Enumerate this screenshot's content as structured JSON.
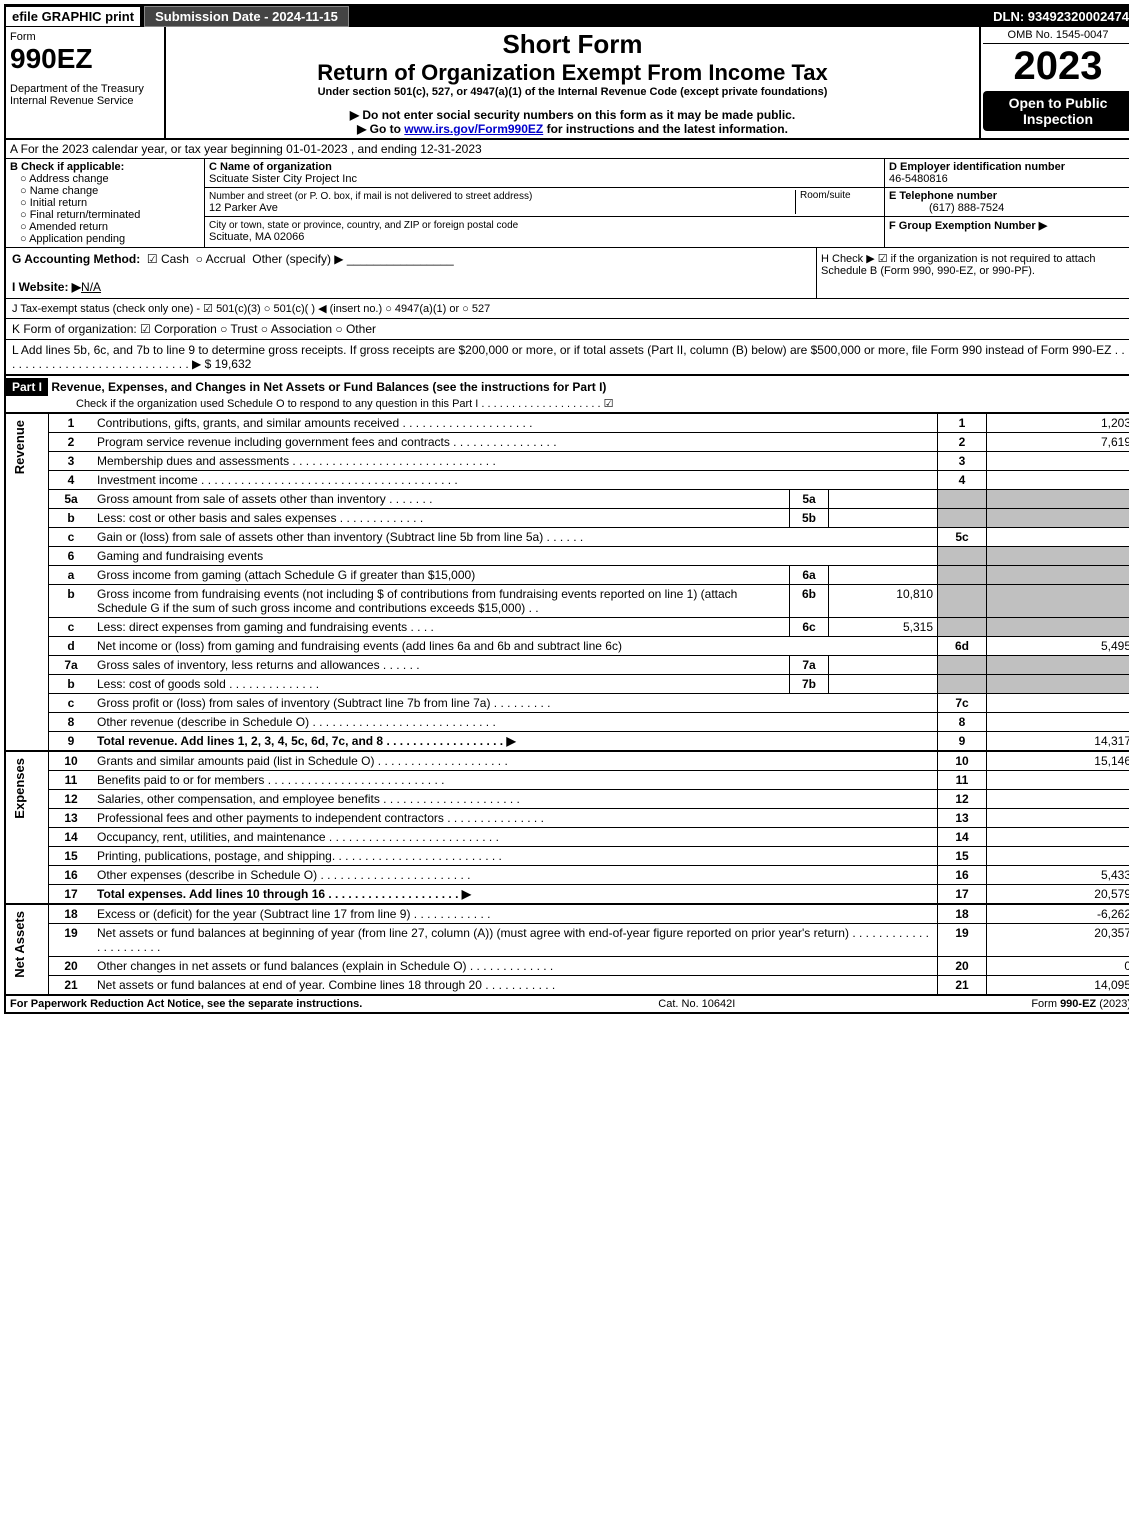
{
  "topbar": {
    "efile": "efile GRAPHIC print",
    "submission": "Submission Date - 2024-11-15",
    "dln": "DLN: 93492320002474"
  },
  "header": {
    "form_word": "Form",
    "form_num": "990EZ",
    "dept": "Department of the Treasury",
    "irs": "Internal Revenue Service",
    "short_form": "Short Form",
    "title": "Return of Organization Exempt From Income Tax",
    "under": "Under section 501(c), 527, or 4947(a)(1) of the Internal Revenue Code (except private foundations)",
    "noSSN": "▶ Do not enter social security numbers on this form as it may be made public.",
    "goto": "▶ Go to ",
    "goto_link": "www.irs.gov/Form990EZ",
    "goto_suffix": " for instructions and the latest information.",
    "omb": "OMB No. 1545-0047",
    "year": "2023",
    "open": "Open to Public Inspection"
  },
  "rowA": "A  For the 2023 calendar year, or tax year beginning 01-01-2023 , and ending 12-31-2023",
  "sectionB": {
    "label": "B  Check if applicable:",
    "items": [
      "Address change",
      "Name change",
      "Initial return",
      "Final return/terminated",
      "Amended return",
      "Application pending"
    ]
  },
  "sectionC": {
    "name_label": "C Name of organization",
    "name": "Scituate Sister City Project Inc",
    "street_label": "Number and street (or P. O. box, if mail is not delivered to street address)",
    "room_label": "Room/suite",
    "street": "12 Parker Ave",
    "city_label": "City or town, state or province, country, and ZIP or foreign postal code",
    "city": "Scituate, MA  02066"
  },
  "sectionD": {
    "d_label": "D Employer identification number",
    "ein": "46-5480816",
    "e_label": "E Telephone number",
    "phone": "(617) 888-7524",
    "f_label": "F Group Exemption Number  ▶"
  },
  "rowG": {
    "label": "G Accounting Method:",
    "cash": "Cash",
    "accrual": "Accrual",
    "other": "Other (specify) ▶"
  },
  "rowH": "H  Check ▶ ☑ if the organization is not required to attach Schedule B (Form 990, 990-EZ, or 990-PF).",
  "rowI": {
    "label": "I Website: ▶",
    "val": "N/A"
  },
  "rowJ": "J Tax-exempt status (check only one) - ☑ 501(c)(3)  ○ 501(c)(  ) ◀ (insert no.)  ○ 4947(a)(1) or  ○ 527",
  "rowK": "K Form of organization:  ☑ Corporation  ○ Trust  ○ Association  ○ Other",
  "rowL": {
    "text": "L Add lines 5b, 6c, and 7b to line 9 to determine gross receipts. If gross receipts are $200,000 or more, or if total assets (Part II, column (B) below) are $500,000 or more, file Form 990 instead of Form 990-EZ  .  .  .  .  .  .  .  .  .  .  .  .  .  .  .  .  .  .  .  .  .  .  .  .  .  .  .  .  .  ▶ $ ",
    "val": "19,632"
  },
  "part1": {
    "label": "Part I",
    "title": "Revenue, Expenses, and Changes in Net Assets or Fund Balances (see the instructions for Part I)",
    "check": "Check if the organization used Schedule O to respond to any question in this Part I  .  .  .  .  .  .  .  .  .  .  .  .  .  .  .  .  .  .  .  .  ☑"
  },
  "sections": {
    "revenue": "Revenue",
    "expenses": "Expenses",
    "netassets": "Net Assets"
  },
  "lines": [
    {
      "n": "1",
      "desc": "Contributions, gifts, grants, and similar amounts received  .  .  .  .  .  .  .  .  .  .  .  .  .  .  .  .  .  .  .  .",
      "rn": "1",
      "rv": "1,203"
    },
    {
      "n": "2",
      "desc": "Program service revenue including government fees and contracts  .  .  .  .  .  .  .  .  .  .  .  .  .  .  .  .",
      "rn": "2",
      "rv": "7,619"
    },
    {
      "n": "3",
      "desc": "Membership dues and assessments  .  .  .  .  .  .  .  .  .  .  .  .  .  .  .  .  .  .  .  .  .  .  .  .  .  .  .  .  .  .  .",
      "rn": "3",
      "rv": ""
    },
    {
      "n": "4",
      "desc": "Investment income  .  .  .  .  .  .  .  .  .  .  .  .  .  .  .  .  .  .  .  .  .  .  .  .  .  .  .  .  .  .  .  .  .  .  .  .  .  .  .",
      "rn": "4",
      "rv": ""
    },
    {
      "n": "5a",
      "desc": "Gross amount from sale of assets other than inventory  .  .  .  .  .  .  .",
      "sub_n": "5a",
      "sub_v": "",
      "shaded": true
    },
    {
      "n": "b",
      "desc": "Less: cost or other basis and sales expenses  .  .  .  .  .  .  .  .  .  .  .  .  .",
      "sub_n": "5b",
      "sub_v": "",
      "shaded": true
    },
    {
      "n": "c",
      "desc": "Gain or (loss) from sale of assets other than inventory (Subtract line 5b from line 5a)  .  .  .  .  .  .",
      "rn": "5c",
      "rv": ""
    },
    {
      "n": "6",
      "desc": "Gaming and fundraising events",
      "shaded": true
    },
    {
      "n": "a",
      "desc": "Gross income from gaming (attach Schedule G if greater than $15,000)",
      "sub_n": "6a",
      "sub_v": "",
      "shaded": true
    },
    {
      "n": "b",
      "desc": "Gross income from fundraising events (not including $                  of contributions from fundraising events reported on line 1) (attach Schedule G if the sum of such gross income and contributions exceeds $15,000)   .   .",
      "sub_n": "6b",
      "sub_v": "10,810",
      "shaded": true
    },
    {
      "n": "c",
      "desc": "Less: direct expenses from gaming and fundraising events   .   .   .   .",
      "sub_n": "6c",
      "sub_v": "5,315",
      "shaded": true
    },
    {
      "n": "d",
      "desc": "Net income or (loss) from gaming and fundraising events (add lines 6a and 6b and subtract line 6c)",
      "rn": "6d",
      "rv": "5,495"
    },
    {
      "n": "7a",
      "desc": "Gross sales of inventory, less returns and allowances  .  .  .  .  .  .",
      "sub_n": "7a",
      "sub_v": "",
      "shaded": true
    },
    {
      "n": "b",
      "desc": "Less: cost of goods sold           .    .    .    .    .    .    .    .    .    .    .    .    .    .",
      "sub_n": "7b",
      "sub_v": "",
      "shaded": true
    },
    {
      "n": "c",
      "desc": "Gross profit or (loss) from sales of inventory (Subtract line 7b from line 7a)  .  .  .  .  .  .  .  .  .",
      "rn": "7c",
      "rv": ""
    },
    {
      "n": "8",
      "desc": "Other revenue (describe in Schedule O)  .  .  .  .  .  .  .  .  .  .  .  .  .  .  .  .  .  .  .  .  .  .  .  .  .  .  .  .",
      "rn": "8",
      "rv": ""
    },
    {
      "n": "9",
      "desc": "Total revenue. Add lines 1, 2, 3, 4, 5c, 6d, 7c, and 8  .  .  .  .  .  .  .  .  .  .  .  .  .  .  .  .  .  .  ▶",
      "rn": "9",
      "rv": "14,317",
      "bold": true
    }
  ],
  "explines": [
    {
      "n": "10",
      "desc": "Grants and similar amounts paid (list in Schedule O)  .  .  .  .  .  .  .  .  .  .  .  .  .  .  .  .  .  .  .  .",
      "rn": "10",
      "rv": "15,146"
    },
    {
      "n": "11",
      "desc": "Benefits paid to or for members      .   .   .   .   .   .   .   .   .   .   .   .   .   .   .   .   .   .   .   .   .   .   .   .   .   .   .",
      "rn": "11",
      "rv": ""
    },
    {
      "n": "12",
      "desc": "Salaries, other compensation, and employee benefits  .  .  .  .  .  .  .  .  .  .  .  .  .  .  .  .  .  .  .  .  .",
      "rn": "12",
      "rv": ""
    },
    {
      "n": "13",
      "desc": "Professional fees and other payments to independent contractors  .  .  .  .  .  .  .  .  .  .  .  .  .  .  .",
      "rn": "13",
      "rv": ""
    },
    {
      "n": "14",
      "desc": "Occupancy, rent, utilities, and maintenance  .  .  .  .  .  .  .  .  .  .  .  .  .  .  .  .  .  .  .  .  .  .  .  .  .  .",
      "rn": "14",
      "rv": ""
    },
    {
      "n": "15",
      "desc": "Printing, publications, postage, and shipping.  .  .  .  .  .  .  .  .  .  .  .  .  .  .  .  .  .  .  .  .  .  .  .  .  .",
      "rn": "15",
      "rv": ""
    },
    {
      "n": "16",
      "desc": "Other expenses (describe in Schedule O)     .   .   .   .   .   .   .   .   .   .   .   .   .   .   .   .   .   .   .   .   .   .   .",
      "rn": "16",
      "rv": "5,433"
    },
    {
      "n": "17",
      "desc": "Total expenses. Add lines 10 through 16     .   .   .   .   .   .   .   .   .   .   .   .   .   .   .   .   .   .   .   .   ▶",
      "rn": "17",
      "rv": "20,579",
      "bold": true
    }
  ],
  "netlines": [
    {
      "n": "18",
      "desc": "Excess or (deficit) for the year (Subtract line 17 from line 9)         .    .    .    .    .    .    .    .    .    .    .    .",
      "rn": "18",
      "rv": "-6,262"
    },
    {
      "n": "19",
      "desc": "Net assets or fund balances at beginning of year (from line 27, column (A)) (must agree with end-of-year figure reported on prior year's return) .  .  .  .  .  .  .  .  .  .  .  .  .  .  .  .  .  .  .  .  .  .",
      "rn": "19",
      "rv": "20,357"
    },
    {
      "n": "20",
      "desc": "Other changes in net assets or fund balances (explain in Schedule O)  .  .  .  .  .  .  .  .  .  .  .  .  .",
      "rn": "20",
      "rv": "0"
    },
    {
      "n": "21",
      "desc": "Net assets or fund balances at end of year. Combine lines 18 through 20  .  .  .  .  .  .  .  .  .  .  .",
      "rn": "21",
      "rv": "14,095"
    }
  ],
  "footer": {
    "pra": "For Paperwork Reduction Act Notice, see the separate instructions.",
    "cat": "Cat. No. 10642I",
    "form": "Form 990-EZ (2023)"
  }
}
